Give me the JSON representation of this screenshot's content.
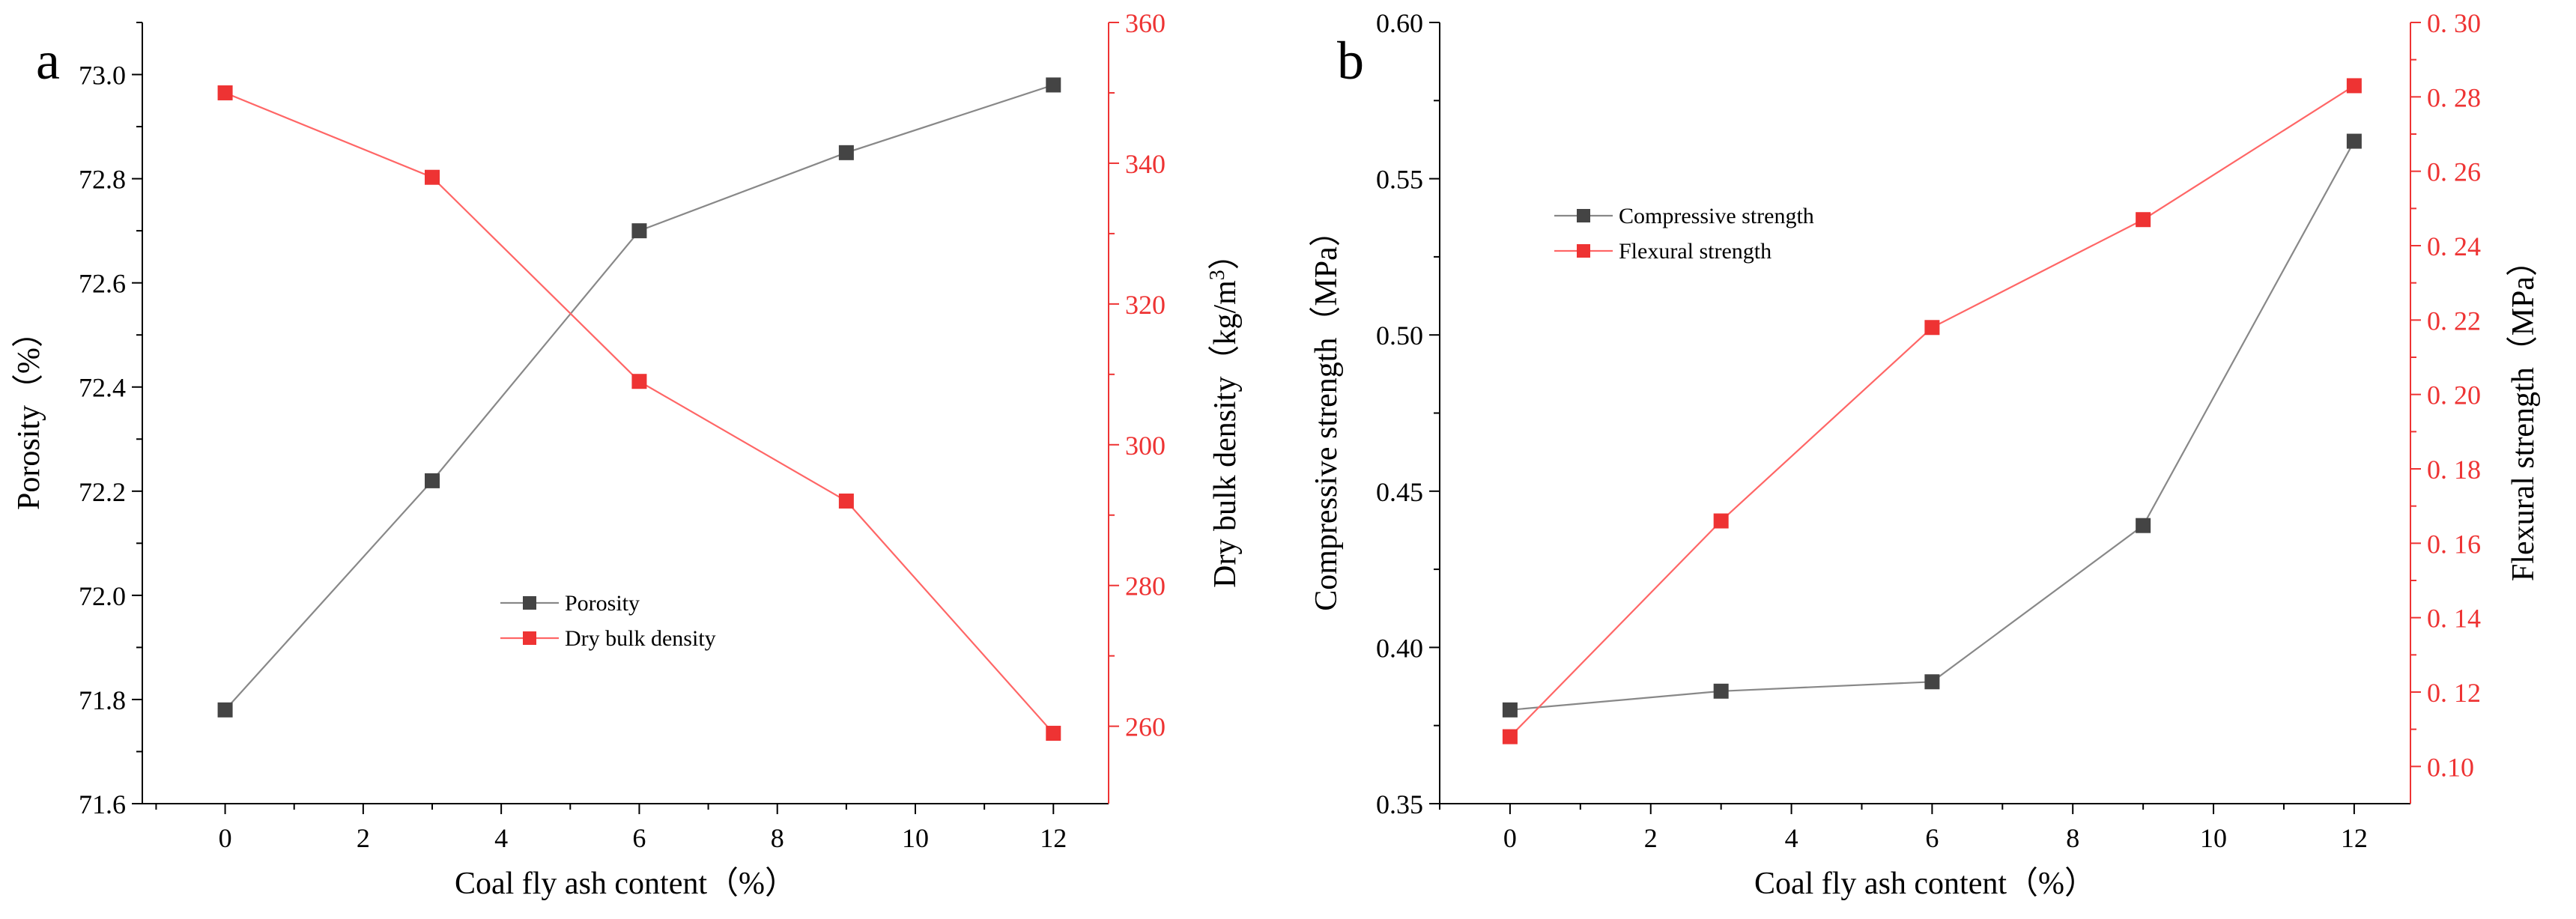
{
  "figure": {
    "panel_labels": [
      "a",
      "b"
    ]
  },
  "colors": {
    "series_gray": "#444444",
    "series_red": "#ee3333",
    "right_axis_red": "#ee3333",
    "axis_black": "#000000",
    "line_gray": "#888888",
    "line_red": "#ff6666"
  },
  "chart_data": [
    {
      "type": "line",
      "panel": "a",
      "title": "",
      "xlabel": "Coal fly ash content（%）",
      "ylabel": "Porosity（%）",
      "y2label_main": "Dry bulk density（kg/m",
      "y2label_sup": "3",
      "y2label_end": "）",
      "x": [
        0,
        3,
        6,
        9,
        12
      ],
      "xlim": [
        -1.2,
        12.8
      ],
      "xticks": [
        0,
        2,
        4,
        6,
        8,
        10,
        12
      ],
      "ylim": [
        71.6,
        73.1
      ],
      "yticks": [
        71.6,
        71.8,
        72.0,
        72.2,
        72.4,
        72.6,
        72.8,
        73.0
      ],
      "ytick_labels": [
        "71.6",
        "71.8",
        "72.0",
        "72.2",
        "72.4",
        "72.6",
        "72.8",
        "73.0"
      ],
      "y2lim": [
        249,
        360
      ],
      "y2ticks": [
        260,
        280,
        300,
        320,
        340,
        360
      ],
      "y2tick_labels": [
        "260",
        "280",
        "300",
        "320",
        "340",
        "360"
      ],
      "series": [
        {
          "name": "Porosity",
          "axis": "left",
          "values": [
            71.78,
            72.22,
            72.7,
            72.85,
            72.98
          ]
        },
        {
          "name": "Dry bulk density",
          "axis": "right",
          "values": [
            350,
            338,
            309,
            292,
            259
          ]
        }
      ],
      "legend": "center"
    },
    {
      "type": "line",
      "panel": "b",
      "title": "",
      "xlabel": "Coal fly ash content（%）",
      "ylabel": "Compressive strength（MPa）",
      "y2label_main": "Flexural strength（MPa）",
      "y2label_sup": "",
      "y2label_end": "",
      "x": [
        0,
        3,
        6,
        9,
        12
      ],
      "xlim": [
        -1.0,
        12.8
      ],
      "xticks": [
        0,
        2,
        4,
        6,
        8,
        10,
        12
      ],
      "ylim": [
        0.35,
        0.6
      ],
      "yticks": [
        0.35,
        0.4,
        0.45,
        0.5,
        0.55,
        0.6
      ],
      "ytick_labels": [
        "0.35",
        "0.40",
        "0.45",
        "0.50",
        "0.55",
        "0.60"
      ],
      "y2lim": [
        0.09,
        0.3
      ],
      "y2ticks": [
        0.1,
        0.12,
        0.14,
        0.16,
        0.18,
        0.2,
        0.22,
        0.24,
        0.26,
        0.28,
        0.3
      ],
      "y2tick_labels": [
        "0.10",
        "0. 12",
        "0. 14",
        "0. 16",
        "0. 18",
        "0. 20",
        "0. 22",
        "0. 24",
        "0. 26",
        "0. 28",
        "0. 30"
      ],
      "series": [
        {
          "name": "Compressive strength",
          "axis": "left",
          "values": [
            0.38,
            0.386,
            0.389,
            0.439,
            0.562
          ]
        },
        {
          "name": "Flexural strength",
          "axis": "right",
          "values": [
            0.108,
            0.166,
            0.218,
            0.247,
            0.283
          ]
        }
      ],
      "legend": "top-left"
    }
  ]
}
